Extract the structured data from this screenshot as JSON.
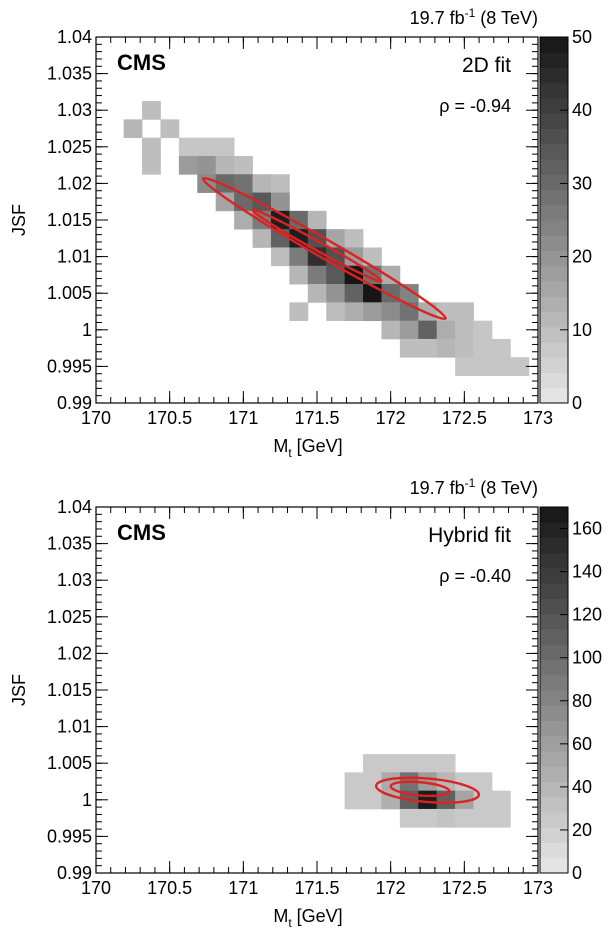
{
  "chart_data": [
    {
      "type": "heatmap",
      "experiment_label": "CMS",
      "method_label": "2D fit",
      "correlation_label": "ρ = -0.94",
      "lumi_label_main": "19.7 fb",
      "lumi_label_sup": "-1",
      "lumi_label_energy": " (8 TeV)",
      "xlabel_main": "M",
      "xlabel_sub": "t",
      "xlabel_unit": " [GeV]",
      "ylabel": "JSF",
      "xlim": [
        170,
        173
      ],
      "ylim": [
        0.99,
        1.04
      ],
      "xticks": [
        "170",
        "170.5",
        "171",
        "171.5",
        "172",
        "172.5",
        "173"
      ],
      "yticks": [
        "0.99",
        "0.995",
        "1",
        "1.005",
        "1.01",
        "1.015",
        "1.02",
        "1.025",
        "1.03",
        "1.035",
        "1.04"
      ],
      "colorbar": {
        "min": 0,
        "max": 50,
        "ticks": [
          "0",
          "10",
          "20",
          "30",
          "40",
          "50"
        ]
      },
      "bin_size": {
        "x": 0.125,
        "y": 0.0025
      },
      "bins": [
        {
          "x": 170.25,
          "y": 1.0275,
          "v": 12
        },
        {
          "x": 170.375,
          "y": 1.03,
          "v": 10
        },
        {
          "x": 170.5,
          "y": 1.0275,
          "v": 10
        },
        {
          "x": 170.375,
          "y": 1.025,
          "v": 10
        },
        {
          "x": 170.375,
          "y": 1.0225,
          "v": 10
        },
        {
          "x": 170.625,
          "y": 1.025,
          "v": 8
        },
        {
          "x": 170.75,
          "y": 1.025,
          "v": 8
        },
        {
          "x": 170.875,
          "y": 1.025,
          "v": 8
        },
        {
          "x": 170.625,
          "y": 1.0225,
          "v": 18
        },
        {
          "x": 170.75,
          "y": 1.0225,
          "v": 20
        },
        {
          "x": 170.875,
          "y": 1.0225,
          "v": 12
        },
        {
          "x": 171.0,
          "y": 1.0225,
          "v": 10
        },
        {
          "x": 170.75,
          "y": 1.02,
          "v": 22
        },
        {
          "x": 170.875,
          "y": 1.02,
          "v": 30
        },
        {
          "x": 171.0,
          "y": 1.02,
          "v": 28
        },
        {
          "x": 171.125,
          "y": 1.02,
          "v": 12
        },
        {
          "x": 171.25,
          "y": 1.02,
          "v": 10
        },
        {
          "x": 170.875,
          "y": 1.0175,
          "v": 16
        },
        {
          "x": 171.0,
          "y": 1.0175,
          "v": 30
        },
        {
          "x": 171.125,
          "y": 1.0175,
          "v": 34
        },
        {
          "x": 171.25,
          "y": 1.0175,
          "v": 20
        },
        {
          "x": 171.0,
          "y": 1.015,
          "v": 14
        },
        {
          "x": 171.125,
          "y": 1.015,
          "v": 26
        },
        {
          "x": 171.25,
          "y": 1.015,
          "v": 48
        },
        {
          "x": 171.375,
          "y": 1.015,
          "v": 30
        },
        {
          "x": 171.5,
          "y": 1.015,
          "v": 12
        },
        {
          "x": 171.125,
          "y": 1.0125,
          "v": 12
        },
        {
          "x": 171.25,
          "y": 1.0125,
          "v": 32
        },
        {
          "x": 171.375,
          "y": 1.0125,
          "v": 48
        },
        {
          "x": 171.5,
          "y": 1.0125,
          "v": 36
        },
        {
          "x": 171.625,
          "y": 1.0125,
          "v": 16
        },
        {
          "x": 171.75,
          "y": 1.0125,
          "v": 10
        },
        {
          "x": 171.25,
          "y": 1.01,
          "v": 10
        },
        {
          "x": 171.375,
          "y": 1.01,
          "v": 26
        },
        {
          "x": 171.5,
          "y": 1.01,
          "v": 44
        },
        {
          "x": 171.625,
          "y": 1.01,
          "v": 36
        },
        {
          "x": 171.75,
          "y": 1.01,
          "v": 18
        },
        {
          "x": 171.875,
          "y": 1.01,
          "v": 10
        },
        {
          "x": 171.375,
          "y": 1.0075,
          "v": 12
        },
        {
          "x": 171.5,
          "y": 1.0075,
          "v": 26
        },
        {
          "x": 171.625,
          "y": 1.0075,
          "v": 34
        },
        {
          "x": 171.75,
          "y": 1.0075,
          "v": 50
        },
        {
          "x": 171.875,
          "y": 1.0075,
          "v": 28
        },
        {
          "x": 172.0,
          "y": 1.0075,
          "v": 14
        },
        {
          "x": 171.5,
          "y": 1.005,
          "v": 12
        },
        {
          "x": 171.625,
          "y": 1.005,
          "v": 20
        },
        {
          "x": 171.75,
          "y": 1.005,
          "v": 32
        },
        {
          "x": 171.875,
          "y": 1.005,
          "v": 50
        },
        {
          "x": 172.0,
          "y": 1.005,
          "v": 30
        },
        {
          "x": 172.125,
          "y": 1.005,
          "v": 24
        },
        {
          "x": 171.375,
          "y": 1.0025,
          "v": 10
        },
        {
          "x": 171.625,
          "y": 1.0025,
          "v": 10
        },
        {
          "x": 171.75,
          "y": 1.0025,
          "v": 14
        },
        {
          "x": 171.875,
          "y": 1.0025,
          "v": 18
        },
        {
          "x": 172.0,
          "y": 1.0025,
          "v": 22
        },
        {
          "x": 172.125,
          "y": 1.0025,
          "v": 28
        },
        {
          "x": 172.25,
          "y": 1.0025,
          "v": 14
        },
        {
          "x": 172.375,
          "y": 1.0025,
          "v": 10
        },
        {
          "x": 172.5,
          "y": 1.0025,
          "v": 10
        },
        {
          "x": 172.0,
          "y": 1.0,
          "v": 12
        },
        {
          "x": 172.125,
          "y": 1.0,
          "v": 18
        },
        {
          "x": 172.25,
          "y": 1.0,
          "v": 32
        },
        {
          "x": 172.375,
          "y": 1.0,
          "v": 14
        },
        {
          "x": 172.5,
          "y": 1.0,
          "v": 10
        },
        {
          "x": 172.625,
          "y": 1.0,
          "v": 8
        },
        {
          "x": 172.125,
          "y": 0.9975,
          "v": 10
        },
        {
          "x": 172.25,
          "y": 0.9975,
          "v": 10
        },
        {
          "x": 172.375,
          "y": 0.9975,
          "v": 12
        },
        {
          "x": 172.5,
          "y": 0.9975,
          "v": 10
        },
        {
          "x": 172.625,
          "y": 0.9975,
          "v": 8
        },
        {
          "x": 172.75,
          "y": 0.9975,
          "v": 8
        },
        {
          "x": 172.5,
          "y": 0.995,
          "v": 8
        },
        {
          "x": 172.625,
          "y": 0.995,
          "v": 8
        },
        {
          "x": 172.75,
          "y": 0.995,
          "v": 8
        },
        {
          "x": 172.875,
          "y": 0.995,
          "v": 8
        }
      ],
      "contours": [
        {
          "cx": 171.55,
          "cy": 1.0111,
          "rx": 0.95,
          "ry": 0.00125,
          "angle_deg": 30
        },
        {
          "cx": 171.5,
          "cy": 1.0115,
          "rx": 0.5,
          "ry": 0.0006,
          "angle_deg": 29
        }
      ],
      "contour_color": "#dd2222"
    },
    {
      "type": "heatmap",
      "experiment_label": "CMS",
      "method_label": "Hybrid fit",
      "correlation_label": "ρ = -0.40",
      "lumi_label_main": "19.7 fb",
      "lumi_label_sup": "-1",
      "lumi_label_energy": " (8 TeV)",
      "xlabel_main": "M",
      "xlabel_sub": "t",
      "xlabel_unit": " [GeV]",
      "ylabel": "JSF",
      "xlim": [
        170,
        173
      ],
      "ylim": [
        0.99,
        1.04
      ],
      "xticks": [
        "170",
        "170.5",
        "171",
        "171.5",
        "172",
        "172.5",
        "173"
      ],
      "yticks": [
        "0.99",
        "0.995",
        "1",
        "1.005",
        "1.01",
        "1.015",
        "1.02",
        "1.025",
        "1.03",
        "1.035",
        "1.04"
      ],
      "colorbar": {
        "min": 0,
        "max": 170,
        "ticks": [
          "0",
          "20",
          "40",
          "60",
          "80",
          "100",
          "120",
          "140",
          "160"
        ]
      },
      "bin_size": {
        "x": 0.125,
        "y": 0.0025
      },
      "bins": [
        {
          "x": 171.875,
          "y": 1.005,
          "v": 25
        },
        {
          "x": 172.0,
          "y": 1.005,
          "v": 25
        },
        {
          "x": 172.125,
          "y": 1.005,
          "v": 25
        },
        {
          "x": 172.25,
          "y": 1.005,
          "v": 25
        },
        {
          "x": 172.375,
          "y": 1.005,
          "v": 25
        },
        {
          "x": 171.75,
          "y": 1.0025,
          "v": 25
        },
        {
          "x": 171.875,
          "y": 1.0025,
          "v": 25
        },
        {
          "x": 172.0,
          "y": 1.0025,
          "v": 50
        },
        {
          "x": 172.125,
          "y": 1.0025,
          "v": 95
        },
        {
          "x": 172.25,
          "y": 1.0025,
          "v": 60
        },
        {
          "x": 172.375,
          "y": 1.0025,
          "v": 40
        },
        {
          "x": 172.5,
          "y": 1.0025,
          "v": 25
        },
        {
          "x": 172.625,
          "y": 1.0025,
          "v": 25
        },
        {
          "x": 171.75,
          "y": 1.0,
          "v": 25
        },
        {
          "x": 171.875,
          "y": 1.0,
          "v": 25
        },
        {
          "x": 172.0,
          "y": 1.0,
          "v": 45
        },
        {
          "x": 172.125,
          "y": 1.0,
          "v": 110
        },
        {
          "x": 172.25,
          "y": 1.0,
          "v": 165
        },
        {
          "x": 172.375,
          "y": 1.0,
          "v": 110
        },
        {
          "x": 172.5,
          "y": 1.0,
          "v": 55
        },
        {
          "x": 172.625,
          "y": 1.0,
          "v": 25
        },
        {
          "x": 172.75,
          "y": 1.0,
          "v": 25
        },
        {
          "x": 172.125,
          "y": 0.9975,
          "v": 25
        },
        {
          "x": 172.25,
          "y": 0.9975,
          "v": 25
        },
        {
          "x": 172.375,
          "y": 0.9975,
          "v": 30
        },
        {
          "x": 172.5,
          "y": 0.9975,
          "v": 25
        },
        {
          "x": 172.625,
          "y": 0.9975,
          "v": 25
        },
        {
          "x": 172.75,
          "y": 0.9975,
          "v": 25
        }
      ],
      "contours": [
        {
          "cx": 172.25,
          "cy": 1.0013,
          "rx": 0.35,
          "ry": 0.0016,
          "angle_deg": 5
        },
        {
          "cx": 172.2,
          "cy": 1.0015,
          "rx": 0.2,
          "ry": 0.0009,
          "angle_deg": 5
        }
      ],
      "contour_color": "#dd2222"
    }
  ]
}
